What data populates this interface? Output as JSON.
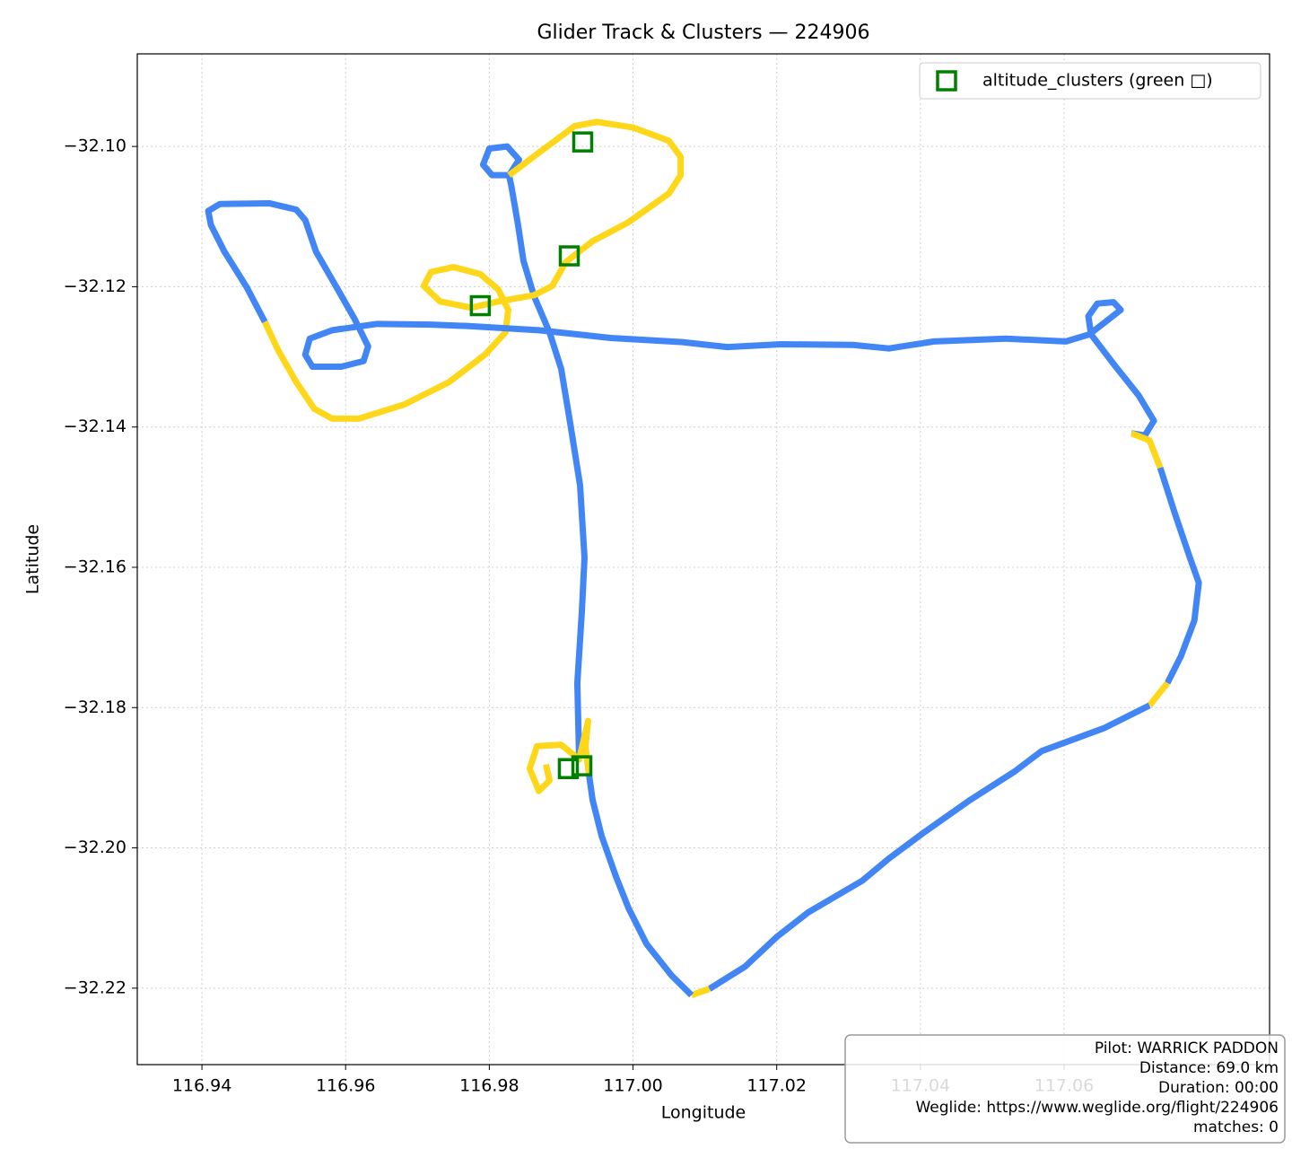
{
  "chart_data": {
    "type": "line",
    "title": "Glider Track & Clusters — 224906",
    "x_label": "Longitude",
    "y_label": "Latitude",
    "xlim": [
      116.931,
      117.0886
    ],
    "ylim": [
      -32.2309,
      -32.0868
    ],
    "xticks": [
      116.94,
      116.96,
      116.98,
      {
        "value": 117.0,
        "label": "117.00"
      },
      117.02,
      117.04,
      117.06
    ],
    "yticks": [
      {
        "value": -32.1,
        "label": "−32.10"
      },
      {
        "value": -32.12,
        "label": "−32.12"
      },
      {
        "value": -32.14,
        "label": "−32.14"
      },
      {
        "value": -32.16,
        "label": "−32.16"
      },
      {
        "value": -32.18,
        "label": "−32.18"
      },
      {
        "value": -32.2,
        "label": "−32.20"
      },
      {
        "value": -32.22,
        "label": "−32.22"
      }
    ],
    "grid": true,
    "legend": "upper right",
    "series": [
      {
        "type": "line",
        "color": "#4285f4",
        "x": [
          116.9925,
          116.99225,
          116.99288,
          116.99325,
          116.99263,
          116.99125,
          116.99,
          116.98838,
          116.98625,
          116.98475,
          116.984,
          116.98313,
          116.98275
        ],
        "values": [
          -32.1874,
          -32.1765,
          -32.1663,
          -32.1586,
          -32.1483,
          -32.1394,
          -32.1317,
          -32.1265,
          -32.1214,
          -32.1163,
          -32.1112,
          -32.106,
          -32.1041
        ]
      },
      {
        "type": "line",
        "color": "#4285f4",
        "x": [
          116.98275,
          116.98038,
          116.97913,
          116.98,
          116.9825,
          116.98413,
          116.98275
        ],
        "values": [
          -32.1041,
          -32.1041,
          -32.1026,
          -32.1003,
          -32.1,
          -32.1019,
          -32.1041
        ]
      },
      {
        "type": "line",
        "color": "#ffd71a",
        "x": [
          116.98275,
          116.98688,
          116.99188,
          116.995,
          117.0,
          117.005,
          117.00663,
          117.00663,
          117.005,
          116.99938,
          116.99438,
          116.99063,
          116.98875,
          116.98625,
          116.98125,
          116.9775,
          116.97313,
          116.97088,
          116.97188,
          116.975,
          116.97875,
          116.98125,
          116.98263,
          116.98225,
          116.97938,
          116.97438,
          116.96813,
          116.96188,
          116.95813,
          116.95563,
          116.95313,
          116.95063,
          116.94875
        ],
        "values": [
          -32.1041,
          -32.1009,
          -32.0971,
          -32.0965,
          -32.0973,
          -32.0992,
          -32.1015,
          -32.1041,
          -32.1067,
          -32.1108,
          -32.1135,
          -32.1165,
          -32.1199,
          -32.1212,
          -32.1221,
          -32.123,
          -32.1221,
          -32.1199,
          -32.1179,
          -32.1172,
          -32.1182,
          -32.1204,
          -32.1233,
          -32.1265,
          -32.1297,
          -32.1336,
          -32.1368,
          -32.1388,
          -32.1388,
          -32.1374,
          -32.1336,
          -32.1291,
          -32.125
        ]
      },
      {
        "type": "line",
        "color": "#4285f4",
        "x": [
          116.94875,
          116.94625,
          116.94313,
          116.94125,
          116.94088,
          116.9425,
          116.94938,
          116.95313,
          116.95438,
          116.95588,
          116.95875,
          116.96125,
          116.96313,
          116.9625,
          116.95938,
          116.95538,
          116.95438,
          116.955,
          116.95813,
          116.96438,
          116.97188,
          116.97688,
          116.98688,
          116.99688,
          117.00688,
          117.01313,
          117.02063,
          117.03063,
          117.03563,
          117.04188,
          117.05188,
          117.06025,
          117.0635,
          117.06588,
          117.06788,
          117.06688,
          117.06463,
          117.06338,
          117.06375,
          117.06688,
          117.07038,
          117.0725,
          117.07125,
          117.06938
        ],
        "values": [
          -32.125,
          -32.1201,
          -32.115,
          -32.1112,
          -32.1092,
          -32.1082,
          -32.1081,
          -32.109,
          -32.1105,
          -32.115,
          -32.1201,
          -32.1246,
          -32.1285,
          -32.1306,
          -32.1314,
          -32.1314,
          -32.1297,
          -32.1274,
          -32.1262,
          -32.1253,
          -32.1254,
          -32.1256,
          -32.1262,
          -32.1273,
          -32.1279,
          -32.1286,
          -32.1282,
          -32.1283,
          -32.1288,
          -32.1278,
          -32.1274,
          -32.1278,
          -32.1268,
          -32.1249,
          -32.1233,
          -32.1222,
          -32.1224,
          -32.1242,
          -32.1268,
          -32.131,
          -32.1355,
          -32.1391,
          -32.1412,
          -32.1409
        ]
      },
      {
        "type": "line",
        "color": "#ffd71a",
        "x": [
          117.06938,
          117.07188,
          117.07338
        ],
        "values": [
          -32.1409,
          -32.1419,
          -32.1458
        ]
      },
      {
        "type": "line",
        "color": "#4285f4",
        "x": [
          117.07338,
          117.07538,
          117.0775,
          117.07875,
          117.07813,
          117.07625,
          117.07438
        ],
        "values": [
          -32.1458,
          -32.1522,
          -32.1586,
          -32.1622,
          -32.1676,
          -32.1727,
          -32.1765
        ]
      },
      {
        "type": "line",
        "color": "#ffd71a",
        "x": [
          117.07438,
          117.07188
        ],
        "values": [
          -32.1765,
          -32.1797
        ]
      },
      {
        "type": "line",
        "color": "#4285f4",
        "x": [
          117.07188,
          117.06563,
          117.05688,
          117.05313,
          117.04688,
          117.04063,
          117.03563,
          117.03188,
          117.02438,
          117.02,
          117.01563,
          117.01063
        ],
        "values": [
          -32.1797,
          -32.1829,
          -32.1862,
          -32.1891,
          -32.1932,
          -32.1977,
          -32.2015,
          -32.2047,
          -32.2092,
          -32.2127,
          -32.2169,
          -32.2201
        ]
      },
      {
        "type": "line",
        "color": "#ffd71a",
        "x": [
          117.01063,
          117.00813
        ],
        "values": [
          -32.2201,
          -32.221
        ]
      },
      {
        "type": "line",
        "color": "#4285f4",
        "x": [
          117.00813,
          117.00538,
          117.00188,
          116.99938,
          116.99763,
          116.99563,
          116.99438,
          116.99388
        ],
        "values": [
          -32.221,
          -32.2182,
          -32.2137,
          -32.2086,
          -32.2041,
          -32.1983,
          -32.1932,
          -32.1896
        ]
      },
      {
        "type": "line",
        "color": "#ffd71a",
        "x": [
          116.99388,
          116.99338,
          116.99375,
          116.9925,
          116.99,
          116.98663,
          116.98563,
          116.98688,
          116.98838,
          116.98788
        ],
        "values": [
          -32.1896,
          -32.1855,
          -32.1819,
          -32.1874,
          -32.1853,
          -32.1855,
          -32.1887,
          -32.1919,
          -32.1904,
          -32.1881
        ]
      },
      {
        "type": "scatter",
        "name": "altitude_clusters (green □)",
        "color": "#008000",
        "x": [
          116.993,
          116.99113,
          116.97875,
          116.991,
          116.99288
        ],
        "values": [
          -32.09936,
          -32.1156,
          -32.1227,
          -32.1887,
          -32.1883
        ]
      }
    ],
    "info_box": [
      "Pilot: WARRICK PADDON",
      "Distance: 69.0 km",
      "Duration: 00:00",
      "Weglide: https://www.weglide.org/flight/224906",
      "matches: 0"
    ]
  }
}
